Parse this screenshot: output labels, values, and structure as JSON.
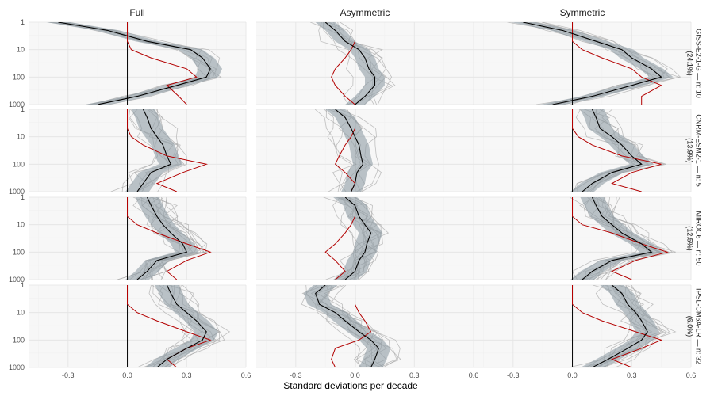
{
  "chart_data": {
    "type": "line",
    "xlabel": "Standard deviations per decade",
    "ylabel": "",
    "x_ticks": [
      -0.3,
      0.0,
      0.3,
      0.6
    ],
    "x_tick_labels": [
      "-0.3",
      "0.0",
      "0.3",
      "0.6"
    ],
    "xlim": [
      -0.5,
      0.6
    ],
    "y_scale": "log",
    "y_reversed": true,
    "y_ticks": [
      1,
      10,
      100,
      1000
    ],
    "y_tick_labels": [
      "1",
      "10",
      "100",
      "1000"
    ],
    "ylim": [
      1,
      1000
    ],
    "columns": [
      "Full",
      "Asymmetric",
      "Symmetric"
    ],
    "rows": [
      "GISS-E2-1-G — n: 10\n(24.1%)",
      "CNRM-ESM2-1 — n: 5\n(13.9%)",
      "MIROC6 — n: 50\n(12.5%)",
      "IPSL-CM6A-LR — n: 32\n(6.0%)"
    ],
    "levels": [
      1,
      2,
      5,
      10,
      20,
      50,
      100,
      200,
      500,
      1000
    ],
    "colors": {
      "ribbon": "#8f9ca5",
      "member": "#a7a7a7",
      "ensemble_mean": "#000000",
      "observed": "#b30000",
      "zero_line": "#000000"
    },
    "panels": [
      [
        {
          "mean": [
            -0.35,
            -0.1,
            0.1,
            0.32,
            0.38,
            0.42,
            0.4,
            0.25,
            0.05,
            -0.15
          ],
          "band": [
            0.06,
            0.06,
            0.06,
            0.06,
            0.06,
            0.06,
            0.06,
            0.06,
            0.06,
            0.06
          ],
          "obs": [
            0.0,
            0.0,
            0.0,
            0.02,
            0.12,
            0.3,
            0.35,
            0.2,
            0.26,
            0.3
          ]
        },
        {
          "mean": [
            -0.15,
            -0.1,
            -0.05,
            0.02,
            0.05,
            0.07,
            0.1,
            0.1,
            0.05,
            0.0
          ],
          "band": [
            0.05,
            0.05,
            0.05,
            0.05,
            0.05,
            0.05,
            0.05,
            0.05,
            0.05,
            0.05
          ],
          "obs": [
            0.0,
            0.0,
            0.0,
            -0.02,
            -0.05,
            -0.1,
            -0.12,
            -0.1,
            -0.05,
            0.0
          ]
        },
        {
          "mean": [
            -0.25,
            -0.05,
            0.12,
            0.25,
            0.3,
            0.4,
            0.45,
            0.3,
            0.1,
            -0.1
          ],
          "band": [
            0.06,
            0.06,
            0.06,
            0.06,
            0.06,
            0.06,
            0.06,
            0.06,
            0.06,
            0.06
          ],
          "obs": [
            0.0,
            0.0,
            0.0,
            0.05,
            0.15,
            0.3,
            0.35,
            0.45,
            0.35,
            0.35
          ]
        }
      ],
      [
        {
          "mean": [
            0.08,
            0.1,
            0.12,
            0.15,
            0.18,
            0.2,
            0.22,
            0.12,
            0.08,
            0.05
          ],
          "band": [
            0.06,
            0.06,
            0.06,
            0.06,
            0.06,
            0.06,
            0.06,
            0.06,
            0.06,
            0.06
          ],
          "obs": [
            0.0,
            0.0,
            0.0,
            0.02,
            0.08,
            0.2,
            0.4,
            0.28,
            0.15,
            0.25
          ]
        },
        {
          "mean": [
            -0.1,
            -0.05,
            -0.02,
            0.0,
            0.02,
            0.03,
            0.04,
            0.01,
            0.0,
            -0.02
          ],
          "band": [
            0.05,
            0.05,
            0.05,
            0.05,
            0.05,
            0.05,
            0.05,
            0.05,
            0.05,
            0.05
          ],
          "obs": [
            0.0,
            0.0,
            0.0,
            -0.02,
            -0.05,
            -0.08,
            -0.1,
            -0.05,
            0.0,
            -0.02
          ]
        },
        {
          "mean": [
            0.1,
            0.12,
            0.14,
            0.2,
            0.25,
            0.3,
            0.35,
            0.2,
            0.1,
            0.05
          ],
          "band": [
            0.06,
            0.06,
            0.06,
            0.06,
            0.06,
            0.06,
            0.06,
            0.06,
            0.06,
            0.06
          ],
          "obs": [
            0.0,
            0.0,
            0.0,
            0.03,
            0.1,
            0.25,
            0.45,
            0.3,
            0.2,
            0.35
          ]
        }
      ],
      [
        {
          "mean": [
            0.1,
            0.12,
            0.15,
            0.18,
            0.22,
            0.28,
            0.3,
            0.15,
            0.1,
            0.05
          ],
          "band": [
            0.06,
            0.06,
            0.06,
            0.06,
            0.06,
            0.06,
            0.06,
            0.06,
            0.06,
            0.06
          ],
          "obs": [
            0.0,
            0.0,
            0.0,
            0.05,
            0.15,
            0.3,
            0.42,
            0.3,
            0.2,
            0.25
          ]
        },
        {
          "mean": [
            -0.05,
            0.0,
            0.02,
            0.05,
            0.08,
            0.06,
            0.05,
            0.02,
            0.0,
            -0.05
          ],
          "band": [
            0.06,
            0.06,
            0.06,
            0.06,
            0.06,
            0.06,
            0.06,
            0.06,
            0.06,
            0.06
          ],
          "obs": [
            0.0,
            0.0,
            0.0,
            -0.02,
            -0.05,
            -0.1,
            -0.15,
            -0.1,
            -0.05,
            -0.1
          ]
        },
        {
          "mean": [
            0.1,
            0.12,
            0.15,
            0.2,
            0.25,
            0.35,
            0.4,
            0.2,
            0.1,
            0.05
          ],
          "band": [
            0.06,
            0.06,
            0.06,
            0.06,
            0.06,
            0.06,
            0.06,
            0.06,
            0.06,
            0.06
          ],
          "obs": [
            0.0,
            0.0,
            0.0,
            0.05,
            0.2,
            0.35,
            0.48,
            0.32,
            0.2,
            0.3
          ]
        }
      ],
      [
        {
          "mean": [
            0.2,
            0.22,
            0.25,
            0.3,
            0.35,
            0.4,
            0.38,
            0.3,
            0.2,
            0.15
          ],
          "band": [
            0.06,
            0.06,
            0.06,
            0.06,
            0.06,
            0.06,
            0.06,
            0.06,
            0.06,
            0.06
          ],
          "obs": [
            0.0,
            0.0,
            0.0,
            0.05,
            0.15,
            0.3,
            0.42,
            0.3,
            0.2,
            0.25
          ]
        },
        {
          "mean": [
            -0.15,
            -0.2,
            -0.18,
            -0.1,
            -0.05,
            0.02,
            0.08,
            0.12,
            0.1,
            0.08
          ],
          "band": [
            0.06,
            0.06,
            0.06,
            0.06,
            0.06,
            0.06,
            0.06,
            0.06,
            0.06,
            0.06
          ],
          "obs": [
            0.0,
            0.0,
            0.0,
            0.02,
            0.05,
            0.08,
            0.02,
            -0.1,
            -0.12,
            -0.1
          ]
        },
        {
          "mean": [
            0.2,
            0.25,
            0.28,
            0.32,
            0.35,
            0.38,
            0.35,
            0.28,
            0.18,
            0.1
          ],
          "band": [
            0.06,
            0.06,
            0.06,
            0.06,
            0.06,
            0.06,
            0.06,
            0.06,
            0.06,
            0.06
          ],
          "obs": [
            0.0,
            0.0,
            0.0,
            0.05,
            0.15,
            0.32,
            0.45,
            0.35,
            0.2,
            0.3
          ]
        }
      ]
    ]
  }
}
